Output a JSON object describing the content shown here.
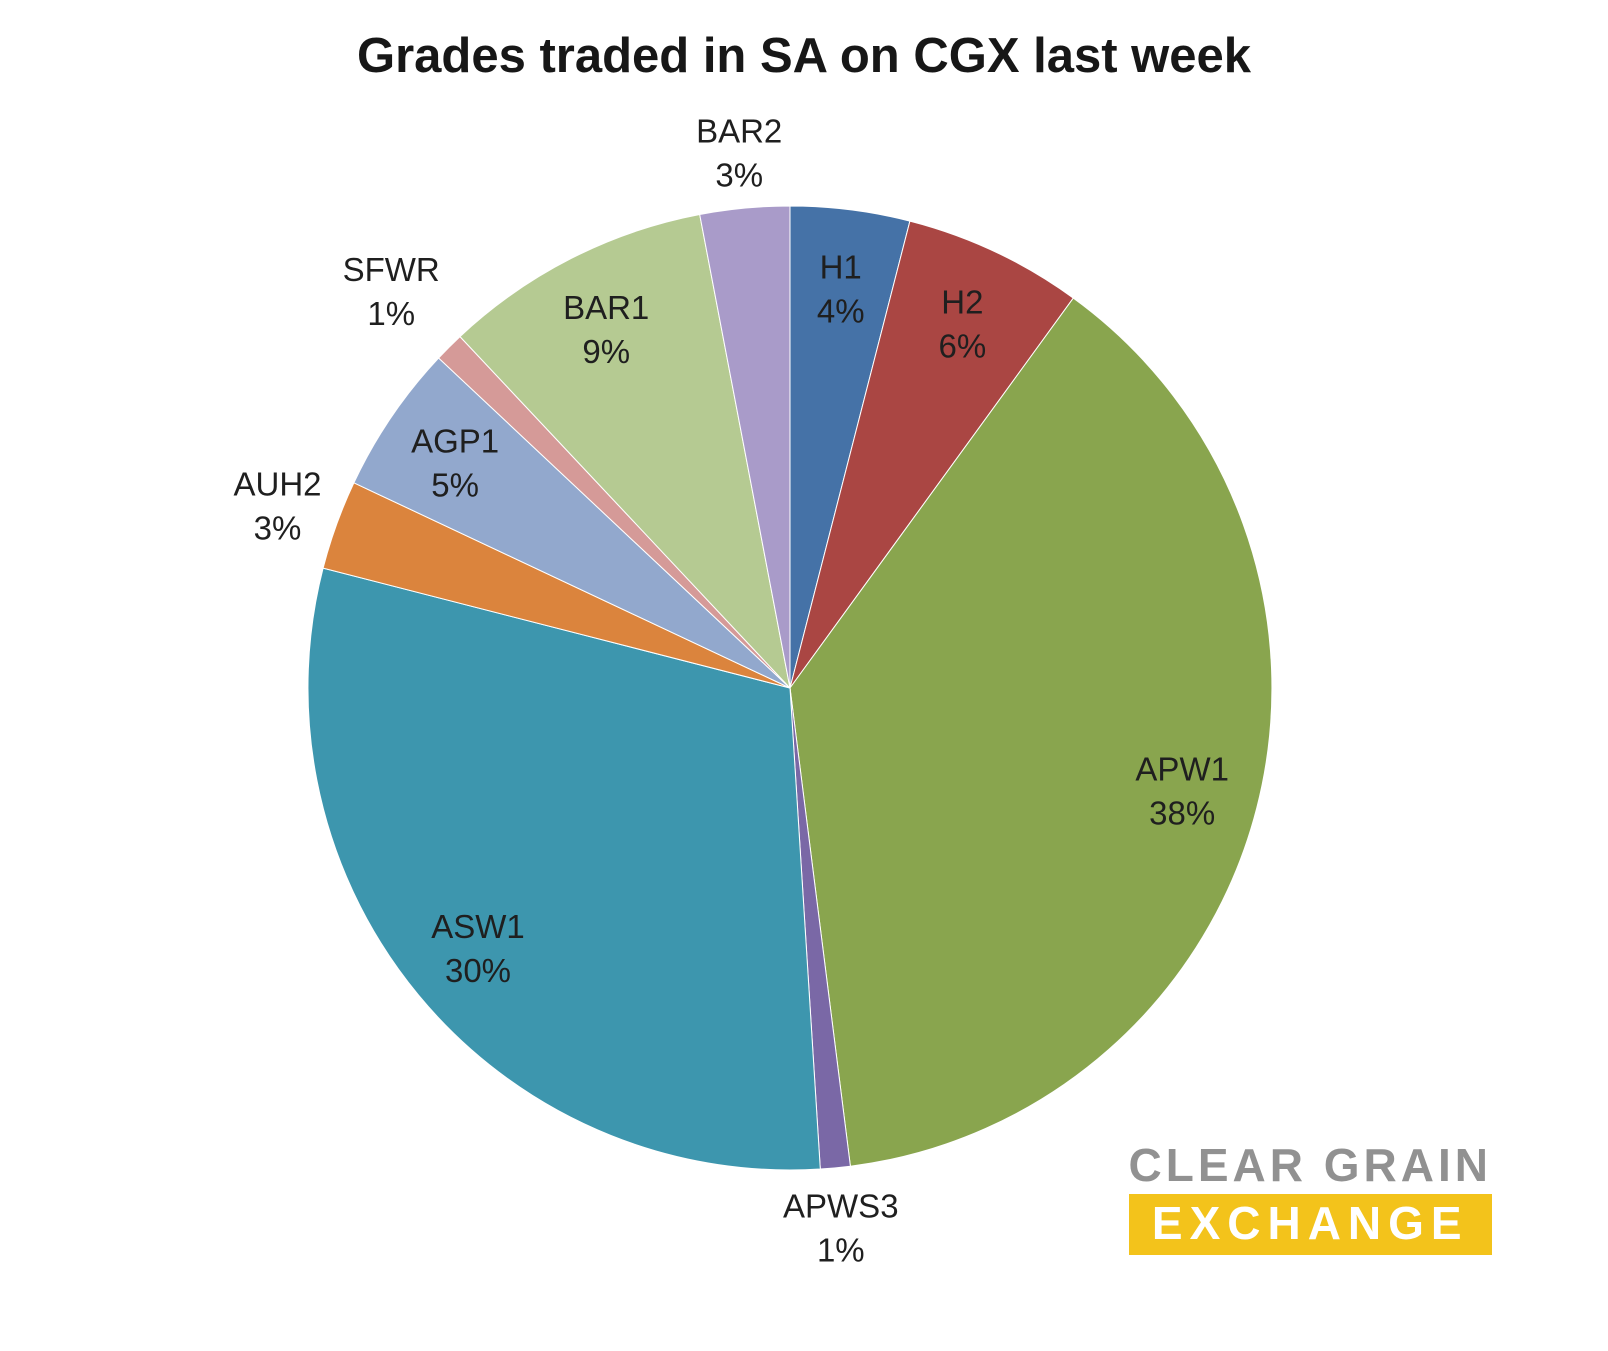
{
  "title": "Grades traded in SA on CGX last week",
  "logo": {
    "line1": "CLEAR GRAIN",
    "line2": "EXCHANGE",
    "banner_color": "#F3C31B",
    "text_color": "#919191"
  },
  "chart_data": {
    "type": "pie",
    "title": "Grades traded in SA on CGX last week",
    "direction": "clockwise",
    "start_angle_deg": 0,
    "legend": "none",
    "background": "#ffffff",
    "slices": [
      {
        "label": "H1",
        "value": 4,
        "pct": "4%",
        "color": "#4572A7",
        "label_inside": true,
        "label_r": 0.84
      },
      {
        "label": "H2",
        "value": 6,
        "pct": "6%",
        "color": "#AA4643",
        "label_inside": true,
        "label_r": 0.84
      },
      {
        "label": "APW1",
        "value": 38,
        "pct": "38%",
        "color": "#89A54E",
        "label_inside": true,
        "label_r": 0.84
      },
      {
        "label": "APWS3",
        "value": 1,
        "pct": "1%",
        "color": "#7A68A6",
        "label_inside": false,
        "label_r": 1.12
      },
      {
        "label": "ASW1",
        "value": 30,
        "pct": "30%",
        "color": "#3D96AE",
        "label_inside": true,
        "label_r": 0.84
      },
      {
        "label": "AUH2",
        "value": 3,
        "pct": "3%",
        "color": "#DB843D",
        "label_inside": false,
        "label_r": 1.13
      },
      {
        "label": "AGP1",
        "value": 5,
        "pct": "5%",
        "color": "#92A8CD",
        "label_inside": true,
        "label_r": 0.84
      },
      {
        "label": "SFWR",
        "value": 1,
        "pct": "1%",
        "color": "#D59A98",
        "label_inside": false,
        "label_r": 1.17
      },
      {
        "label": "BAR1",
        "value": 9,
        "pct": "9%",
        "color": "#B5CA92",
        "label_inside": true,
        "label_r": 0.84
      },
      {
        "label": "BAR2",
        "value": 3,
        "pct": "3%",
        "color": "#A99BC9",
        "label_inside": false,
        "label_r": 1.12
      }
    ]
  }
}
